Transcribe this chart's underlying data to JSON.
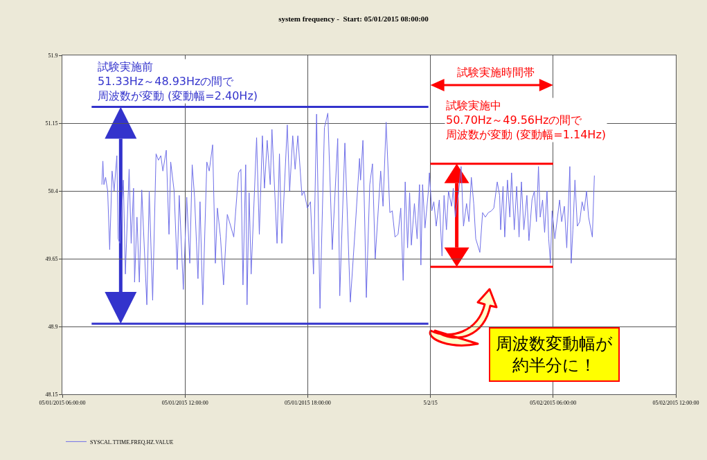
{
  "chart_data": {
    "type": "line",
    "title": "system frequency -  Start: 05/01/2015 08:00:00",
    "xlim": [
      "2015-05-01T06:00",
      "2015-05-02T12:00"
    ],
    "xticks": [
      {
        "value": "2015-05-01T06:00",
        "label": "05/01/2015 06:00:00"
      },
      {
        "value": "2015-05-01T12:00",
        "label": "05/01/2015 12:00:00"
      },
      {
        "value": "2015-05-01T18:00",
        "label": "05/01/2015 18:00:00"
      },
      {
        "value": "2015-05-02T00:00",
        "label": "5/2/15"
      },
      {
        "value": "2015-05-02T06:00",
        "label": "05/02/2015 06:00:00"
      },
      {
        "value": "2015-05-02T12:00",
        "label": "05/02/2015 12:00:00"
      }
    ],
    "ylim": [
      48.15,
      51.9
    ],
    "yticks": [
      48.15,
      48.9,
      49.65,
      50.4,
      51.15,
      51.9
    ],
    "grid": true,
    "legend": "bottom left",
    "marker": "none",
    "line_style": "solid",
    "series": [
      {
        "name": "SYSCAL.TTIME.FREQ.HZ.VALUE",
        "color": "#6f6fe8",
        "x": [
          "2015-05-01T07:56",
          "2015-05-01T07:59",
          "2015-05-01T08:02",
          "2015-05-01T08:07",
          "2015-05-01T08:13",
          "2015-05-01T08:19",
          "2015-05-01T08:26",
          "2015-05-01T08:32",
          "2015-05-01T08:40",
          "2015-05-01T08:44",
          "2015-05-01T08:49",
          "2015-05-01T08:59",
          "2015-05-01T09:05",
          "2015-05-01T09:16",
          "2015-05-01T09:22",
          "2015-05-01T09:29",
          "2015-05-01T09:32",
          "2015-05-01T09:39",
          "2015-05-01T09:46",
          "2015-05-01T09:53",
          "2015-05-01T10:08",
          "2015-05-01T10:15",
          "2015-05-01T10:25",
          "2015-05-01T10:35",
          "2015-05-01T10:42",
          "2015-05-01T10:49",
          "2015-05-01T10:55",
          "2015-05-01T11:05",
          "2015-05-01T11:13",
          "2015-05-01T11:18",
          "2015-05-01T11:28",
          "2015-05-01T11:37",
          "2015-05-01T11:43",
          "2015-05-01T11:55",
          "2015-05-01T12:05",
          "2015-05-01T12:14",
          "2015-05-01T12:21",
          "2015-05-01T12:28",
          "2015-05-01T12:38",
          "2015-05-01T12:44",
          "2015-05-01T12:52",
          "2015-05-01T13:04",
          "2015-05-01T13:11",
          "2015-05-01T13:21",
          "2015-05-01T13:29",
          "2015-05-01T13:35",
          "2015-05-01T13:44",
          "2015-05-01T13:53",
          "2015-05-01T14:04",
          "2015-05-01T14:14",
          "2015-05-01T14:23",
          "2015-05-01T14:37",
          "2015-05-01T14:44",
          "2015-05-01T14:50",
          "2015-05-01T14:58",
          "2015-05-01T15:02",
          "2015-05-01T15:08",
          "2015-05-01T15:14",
          "2015-05-01T15:30",
          "2015-05-01T15:38",
          "2015-05-01T15:47",
          "2015-05-01T15:53",
          "2015-05-01T16:01",
          "2015-05-01T16:10",
          "2015-05-01T16:15",
          "2015-05-01T16:30",
          "2015-05-01T16:37",
          "2015-05-01T16:44",
          "2015-05-01T17:00",
          "2015-05-01T17:07",
          "2015-05-01T17:16",
          "2015-05-01T17:23",
          "2015-05-01T17:31",
          "2015-05-01T17:43",
          "2015-05-01T17:49",
          "2015-05-01T17:59",
          "2015-05-01T18:08",
          "2015-05-01T18:17",
          "2015-05-01T18:26",
          "2015-05-01T18:36",
          "2015-05-01T18:49",
          "2015-05-01T18:59",
          "2015-05-01T19:12",
          "2015-05-01T19:28",
          "2015-05-01T19:34",
          "2015-05-01T19:49",
          "2015-05-01T20:05",
          "2015-05-01T20:19",
          "2015-05-01T20:32",
          "2015-05-01T20:35",
          "2015-05-01T20:42",
          "2015-05-01T20:52",
          "2015-05-01T21:02",
          "2015-05-01T21:10",
          "2015-05-01T21:18",
          "2015-05-01T21:34",
          "2015-05-01T21:41",
          "2015-05-01T21:50",
          "2015-05-01T22:01",
          "2015-05-01T22:08",
          "2015-05-01T22:16",
          "2015-05-01T22:25",
          "2015-05-01T22:33",
          "2015-05-01T22:40",
          "2015-05-01T22:46",
          "2015-05-01T22:53",
          "2015-05-01T22:59",
          "2015-05-01T23:04",
          "2015-05-01T23:13",
          "2015-05-01T23:21",
          "2015-05-01T23:28",
          "2015-05-01T23:32",
          "2015-05-01T23:37",
          "2015-05-01T23:44",
          "2015-05-01T23:54",
          "2015-05-01T23:57",
          "2015-05-02T00:04",
          "2015-05-02T00:10",
          "2015-05-02T00:17",
          "2015-05-02T00:26",
          "2015-05-02T00:34",
          "2015-05-02T00:40",
          "2015-05-02T00:47",
          "2015-05-02T00:53",
          "2015-05-02T01:02",
          "2015-05-02T01:07",
          "2015-05-02T01:13",
          "2015-05-02T01:23",
          "2015-05-02T01:30",
          "2015-05-02T01:37",
          "2015-05-02T01:46",
          "2015-05-02T01:53",
          "2015-05-02T02:00",
          "2015-05-02T02:07",
          "2015-05-02T02:13",
          "2015-05-02T02:25",
          "2015-05-02T02:33",
          "2015-05-02T02:41",
          "2015-05-02T02:50",
          "2015-05-02T02:59",
          "2015-05-02T03:06",
          "2015-05-02T03:16",
          "2015-05-02T03:23",
          "2015-05-02T03:26",
          "2015-05-02T03:33",
          "2015-05-02T03:38",
          "2015-05-02T03:46",
          "2015-05-02T03:53",
          "2015-05-02T03:58",
          "2015-05-02T04:06",
          "2015-05-02T04:13",
          "2015-05-02T04:20",
          "2015-05-02T04:27",
          "2015-05-02T04:34",
          "2015-05-02T04:43",
          "2015-05-02T04:49",
          "2015-05-02T04:58",
          "2015-05-02T05:05",
          "2015-05-02T05:11",
          "2015-05-02T05:17",
          "2015-05-02T05:22",
          "2015-05-02T05:29",
          "2015-05-02T05:35",
          "2015-05-02T05:42",
          "2015-05-02T05:47",
          "2015-05-02T05:52",
          "2015-05-02T05:57",
          "2015-05-02T06:05",
          "2015-05-02T06:19",
          "2015-05-02T06:25",
          "2015-05-02T06:33",
          "2015-05-02T06:40",
          "2015-05-02T06:49",
          "2015-05-02T06:53",
          "2015-05-02T06:58",
          "2015-05-02T07:04",
          "2015-05-02T07:11",
          "2015-05-02T07:18",
          "2015-05-02T07:25",
          "2015-05-02T07:31",
          "2015-05-02T07:38",
          "2015-05-02T07:44",
          "2015-05-02T07:55",
          "2015-05-02T08:01"
        ],
        "values": [
          50.47,
          50.73,
          50.47,
          50.55,
          50.4,
          49.75,
          50.62,
          50.4,
          50.79,
          49.87,
          49.82,
          50.52,
          49.48,
          50.64,
          49.82,
          50.43,
          49.39,
          50.11,
          49.39,
          50.41,
          49.14,
          50.4,
          49.19,
          50.81,
          50.74,
          50.79,
          50.62,
          50.85,
          49.92,
          50.72,
          50.4,
          49.53,
          50.35,
          49.31,
          50.33,
          49.6,
          50.69,
          50.33,
          49.43,
          50.28,
          49.14,
          50.72,
          50.62,
          50.91,
          49.6,
          50.21,
          49.89,
          49.36,
          50.14,
          50.01,
          49.89,
          50.6,
          50.64,
          49.36,
          50.69,
          49.14,
          50.38,
          49.48,
          50.99,
          49.92,
          51.01,
          50.43,
          50.96,
          50.47,
          51.08,
          49.82,
          50.81,
          49.82,
          51.13,
          50.4,
          51.01,
          50.64,
          51.01,
          50.35,
          50.4,
          50.21,
          50.28,
          49.48,
          51.25,
          49.1,
          51.1,
          51.26,
          49.75,
          50.98,
          49.24,
          50.93,
          49.17,
          49.97,
          50.76,
          50.52,
          50.96,
          49.22,
          50.47,
          50.7,
          49.65,
          50.62,
          50.23,
          51.16,
          50.16,
          50.18,
          49.89,
          49.92,
          50.21,
          49.41,
          50.5,
          49.77,
          50.38,
          49.8,
          50.26,
          49.87,
          50.47,
          49.58,
          50.47,
          49.99,
          50.4,
          50.6,
          50.18,
          50.28,
          50.01,
          50.3,
          49.68,
          50.35,
          49.97,
          50.4,
          50.23,
          50.43,
          50.11,
          50.4,
          50.67,
          50.01,
          50.26,
          50.06,
          50.55,
          50.26,
          49.87,
          49.72,
          50.16,
          50.11,
          50.16,
          50.18,
          50.21,
          50.5,
          50.35,
          49.97,
          50.45,
          49.89,
          50.52,
          50.11,
          50.6,
          49.97,
          50.45,
          49.89,
          50.5,
          49.97,
          50.35,
          49.85,
          50.3,
          50.4,
          50.06,
          50.67,
          50.11,
          50.3,
          49.94,
          50.4,
          49.87,
          49.6,
          50.18,
          49.87,
          50.3,
          50.06,
          50.23,
          49.77,
          50.67,
          49.6,
          49.97,
          50.52,
          50.01,
          50.06,
          50.28,
          50.18,
          50.4,
          50.11,
          49.89,
          50.57
        ]
      },
      {
        "type": "line",
        "color": "#3333cc",
        "x": [
          "2015-05-01T07:26",
          "2015-05-01T23:54"
        ],
        "values": [
          51.33,
          51.33
        ]
      },
      {
        "type": "line",
        "color": "#3333cc",
        "x": [
          "2015-05-01T07:26",
          "2015-05-01T23:54"
        ],
        "values": [
          48.93,
          48.93
        ]
      },
      {
        "type": "line",
        "color": "#ff0000",
        "x": [
          "2015-05-02T00:00",
          "2015-05-02T06:00"
        ],
        "values": [
          50.7,
          50.7
        ]
      },
      {
        "type": "line",
        "color": "#ff0000",
        "x": [
          "2015-05-02T00:00",
          "2015-05-02T06:00"
        ],
        "values": [
          49.56,
          49.56
        ]
      }
    ],
    "annotations": [
      "試験実施前51.33Hz～48.93Hzの間で周波数が変動 (変動幅=2.40Hz)",
      "試験実施時間帯",
      "試験実施中50.70Hz～49.56Hzの間で周波数が変動 (変動幅=1.14Hz)",
      "周波数変動幅が約半分に！"
    ]
  }
}
